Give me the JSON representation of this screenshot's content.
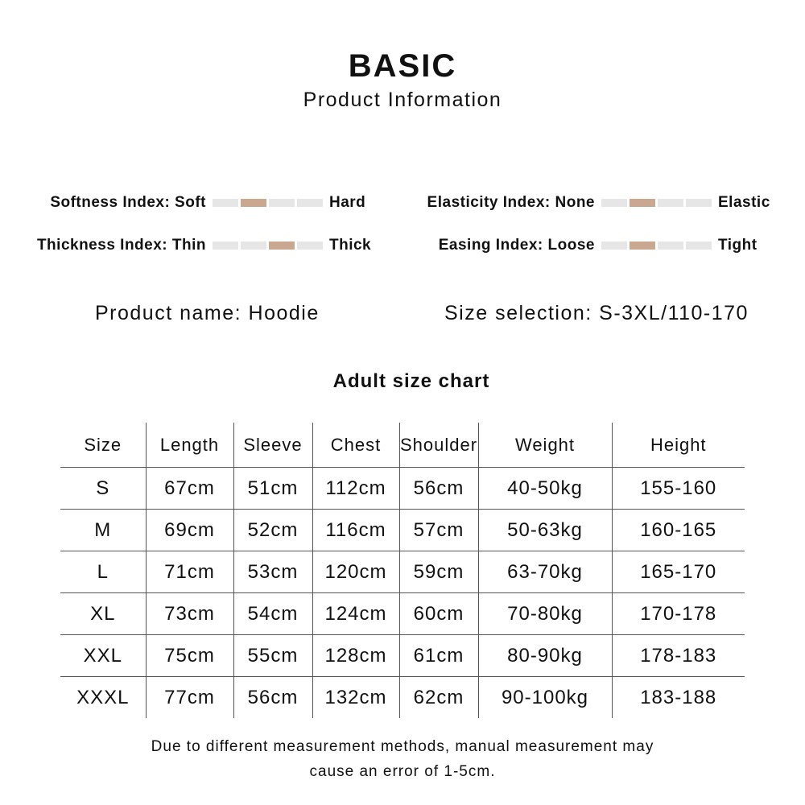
{
  "header": {
    "title": "BASIC",
    "subtitle": "Product Information"
  },
  "indices": [
    {
      "label": "Softness Index: Soft",
      "end": "Hard",
      "level": 2,
      "segments": 4
    },
    {
      "label": "Thickness Index: Thin",
      "end": "Thick",
      "level": 3,
      "segments": 4
    },
    {
      "label": "Elasticity Index: None",
      "end": "Elastic",
      "level": 2,
      "segments": 4
    },
    {
      "label": "Easing Index: Loose",
      "end": "Tight",
      "level": 2,
      "segments": 4
    }
  ],
  "colors": {
    "active": "#c9a88f",
    "inactive": "#e6e6e6"
  },
  "product": {
    "name": "Product name: Hoodie",
    "sizes": "Size selection: S-3XL/110-170"
  },
  "chart_title": "Adult size chart",
  "table": {
    "headers": [
      "Size",
      "Length",
      "Sleeve",
      "Chest",
      "Shoulder",
      "Weight",
      "Height"
    ],
    "rows": [
      [
        "S",
        "67cm",
        "51cm",
        "112cm",
        "56cm",
        "40-50kg",
        "155-160"
      ],
      [
        "M",
        "69cm",
        "52cm",
        "116cm",
        "57cm",
        "50-63kg",
        "160-165"
      ],
      [
        "L",
        "71cm",
        "53cm",
        "120cm",
        "59cm",
        "63-70kg",
        "165-170"
      ],
      [
        "XL",
        "73cm",
        "54cm",
        "124cm",
        "60cm",
        "70-80kg",
        "170-178"
      ],
      [
        "XXL",
        "75cm",
        "55cm",
        "128cm",
        "61cm",
        "80-90kg",
        "178-183"
      ],
      [
        "XXXL",
        "77cm",
        "56cm",
        "132cm",
        "62cm",
        "90-100kg",
        "183-188"
      ]
    ]
  },
  "note": {
    "line1": "Due to different measurement methods, manual measurement may",
    "line2": "cause an error of 1-5cm."
  }
}
